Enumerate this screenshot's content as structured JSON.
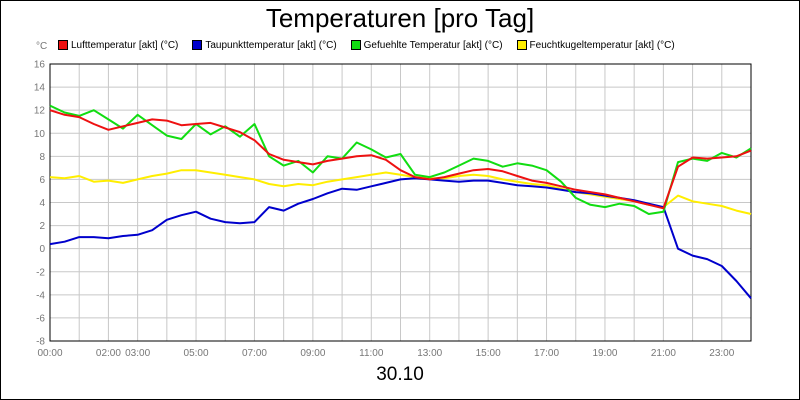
{
  "chart_data": {
    "type": "line",
    "title": "Temperaturen [pro Tag]",
    "xlabel": "30.10",
    "ylabel": "°C",
    "ylim": [
      -8,
      16
    ],
    "yticks": [
      16,
      14,
      12,
      10,
      8,
      6,
      4,
      2,
      0,
      -2,
      -4,
      -6,
      -8
    ],
    "xlim": [
      0,
      24
    ],
    "xticks": [
      {
        "h": 0,
        "label": "00:00"
      },
      {
        "h": 2,
        "label": "02:00"
      },
      {
        "h": 3,
        "label": "03:00"
      },
      {
        "h": 5,
        "label": "05:00"
      },
      {
        "h": 7,
        "label": "07:00"
      },
      {
        "h": 9,
        "label": "09:00"
      },
      {
        "h": 11,
        "label": "11:00"
      },
      {
        "h": 13,
        "label": "13:00"
      },
      {
        "h": 15,
        "label": "15:00"
      },
      {
        "h": 17,
        "label": "17:00"
      },
      {
        "h": 19,
        "label": "19:00"
      },
      {
        "h": 21,
        "label": "21:00"
      },
      {
        "h": 23,
        "label": "23:00"
      }
    ],
    "grid": true,
    "legend_position": "top",
    "series": [
      {
        "name": "Lufttemperatur [akt] (°C)",
        "color": "#ee1111",
        "x": [
          0,
          0.5,
          1,
          1.5,
          2,
          2.5,
          3,
          3.5,
          4,
          4.5,
          5,
          5.5,
          6,
          6.5,
          7,
          7.5,
          8,
          8.5,
          9,
          9.5,
          10,
          10.5,
          11,
          11.5,
          12,
          12.5,
          13,
          13.5,
          14,
          14.5,
          15,
          15.5,
          16,
          16.5,
          17,
          17.5,
          18,
          18.5,
          19,
          19.5,
          20,
          20.5,
          21,
          21.5,
          22,
          22.5,
          23,
          23.5,
          24
        ],
        "values": [
          12,
          11.6,
          11.4,
          10.8,
          10.3,
          10.6,
          10.9,
          11.2,
          11.1,
          10.7,
          10.8,
          10.9,
          10.5,
          10.1,
          9.4,
          8.2,
          7.7,
          7.5,
          7.3,
          7.6,
          7.8,
          8.0,
          8.1,
          7.7,
          6.8,
          6.2,
          6.0,
          6.2,
          6.5,
          6.8,
          6.9,
          6.7,
          6.3,
          5.9,
          5.7,
          5.4,
          5.1,
          4.9,
          4.7,
          4.4,
          4.1,
          3.8,
          3.5,
          7.1,
          7.9,
          7.8,
          7.9,
          8.0,
          8.5
        ]
      },
      {
        "name": "Taupunkttemperatur [akt] (°C)",
        "color": "#0000cc",
        "x": [
          0,
          0.5,
          1,
          1.5,
          2,
          2.5,
          3,
          3.5,
          4,
          4.5,
          5,
          5.5,
          6,
          6.5,
          7,
          7.5,
          8,
          8.5,
          9,
          9.5,
          10,
          10.5,
          11,
          11.5,
          12,
          12.5,
          13,
          13.5,
          14,
          14.5,
          15,
          15.5,
          16,
          16.5,
          17,
          17.5,
          18,
          18.5,
          19,
          19.5,
          20,
          20.5,
          21,
          21.5,
          22,
          22.5,
          23,
          23.5,
          24
        ],
        "values": [
          0.4,
          0.6,
          1.0,
          1.0,
          0.9,
          1.1,
          1.2,
          1.6,
          2.5,
          2.9,
          3.2,
          2.6,
          2.3,
          2.2,
          2.3,
          3.6,
          3.3,
          3.9,
          4.3,
          4.8,
          5.2,
          5.1,
          5.4,
          5.7,
          6.0,
          6.1,
          6.0,
          5.9,
          5.8,
          5.9,
          5.9,
          5.7,
          5.5,
          5.4,
          5.3,
          5.1,
          4.9,
          4.8,
          4.6,
          4.4,
          4.2,
          3.9,
          3.6,
          0.0,
          -0.6,
          -0.9,
          -1.5,
          -2.8,
          -4.3
        ]
      },
      {
        "name": "Gefuehlte Temperatur [akt] (°C)",
        "color": "#11dd11",
        "x": [
          0,
          0.5,
          1,
          1.5,
          2,
          2.5,
          3,
          3.5,
          4,
          4.5,
          5,
          5.5,
          6,
          6.5,
          7,
          7.5,
          8,
          8.5,
          9,
          9.5,
          10,
          10.5,
          11,
          11.5,
          12,
          12.5,
          13,
          13.5,
          14,
          14.5,
          15,
          15.5,
          16,
          16.5,
          17,
          17.5,
          18,
          18.5,
          19,
          19.5,
          20,
          20.5,
          21,
          21.5,
          22,
          22.5,
          23,
          23.5,
          24
        ],
        "values": [
          12.4,
          11.8,
          11.5,
          12.0,
          11.2,
          10.4,
          11.6,
          10.7,
          9.8,
          9.5,
          10.8,
          9.9,
          10.6,
          9.7,
          10.8,
          8.0,
          7.2,
          7.6,
          6.6,
          8.0,
          7.8,
          9.2,
          8.6,
          7.9,
          8.2,
          6.4,
          6.2,
          6.6,
          7.2,
          7.8,
          7.6,
          7.1,
          7.4,
          7.2,
          6.8,
          5.8,
          4.4,
          3.8,
          3.6,
          3.9,
          3.7,
          3.0,
          3.2,
          7.5,
          7.8,
          7.6,
          8.3,
          7.9,
          8.7
        ]
      },
      {
        "name": "Feuchtkugeltemperatur [akt] (°C)",
        "color": "#ffee00",
        "x": [
          0,
          0.5,
          1,
          1.5,
          2,
          2.5,
          3,
          3.5,
          4,
          4.5,
          5,
          5.5,
          6,
          6.5,
          7,
          7.5,
          8,
          8.5,
          9,
          9.5,
          10,
          10.5,
          11,
          11.5,
          12,
          12.5,
          13,
          13.5,
          14,
          14.5,
          15,
          15.5,
          16,
          16.5,
          17,
          17.5,
          18,
          18.5,
          19,
          19.5,
          20,
          20.5,
          21,
          21.5,
          22,
          22.5,
          23,
          23.5,
          24
        ],
        "values": [
          6.2,
          6.1,
          6.3,
          5.8,
          5.9,
          5.7,
          6.0,
          6.3,
          6.5,
          6.8,
          6.8,
          6.6,
          6.4,
          6.2,
          6.0,
          5.6,
          5.4,
          5.6,
          5.5,
          5.8,
          6.0,
          6.2,
          6.4,
          6.6,
          6.4,
          6.2,
          6.1,
          6.1,
          6.3,
          6.4,
          6.3,
          6.0,
          5.8,
          5.6,
          5.5,
          5.2,
          4.9,
          4.7,
          4.5,
          4.3,
          4.1,
          3.8,
          3.6,
          4.6,
          4.1,
          3.9,
          3.7,
          3.3,
          3.0
        ]
      }
    ]
  }
}
